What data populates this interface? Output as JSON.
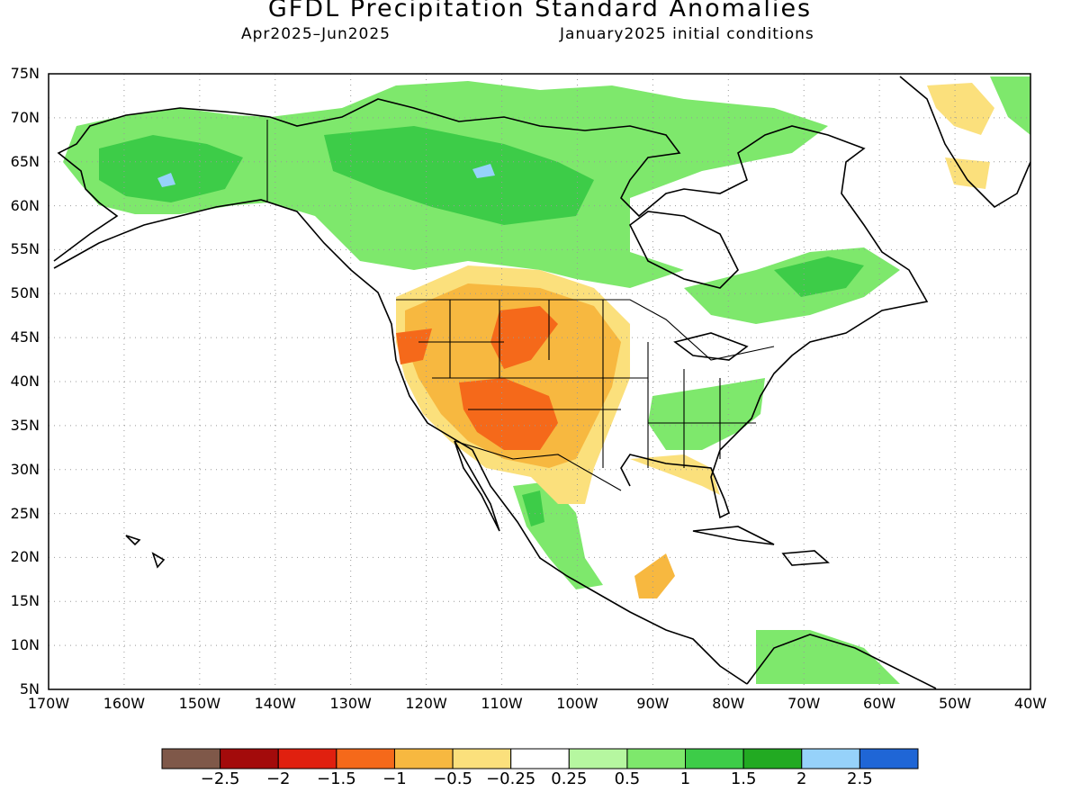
{
  "header": {
    "title": "GFDL Precipitation Standard Anomalies",
    "period": "Apr2025–Jun2025",
    "init": "January2025 initial conditions"
  },
  "axes": {
    "lat_labels": [
      "75N",
      "70N",
      "65N",
      "60N",
      "55N",
      "50N",
      "45N",
      "40N",
      "35N",
      "30N",
      "25N",
      "20N",
      "15N",
      "10N",
      "5N"
    ],
    "lon_labels": [
      "170W",
      "160W",
      "150W",
      "140W",
      "130W",
      "120W",
      "110W",
      "100W",
      "90W",
      "80W",
      "70W",
      "60W",
      "50W",
      "40W"
    ]
  },
  "legend": {
    "colors": [
      "#7f5849",
      "#a30b0b",
      "#e0200f",
      "#f5691a",
      "#f7b840",
      "#fbe07c",
      "#ffffff",
      "#b6f7a0",
      "#7ee86c",
      "#3dcc48",
      "#22aa22",
      "#96d2fa",
      "#1f66d6"
    ],
    "labels": [
      "−2.5",
      "−2",
      "−1.5",
      "−1",
      "−0.5",
      "−0.25",
      "0.25",
      "0.5",
      "1",
      "1.5",
      "2",
      "2.5"
    ]
  },
  "colors": {
    "land_outline": "#000000",
    "grid": "#999999"
  }
}
